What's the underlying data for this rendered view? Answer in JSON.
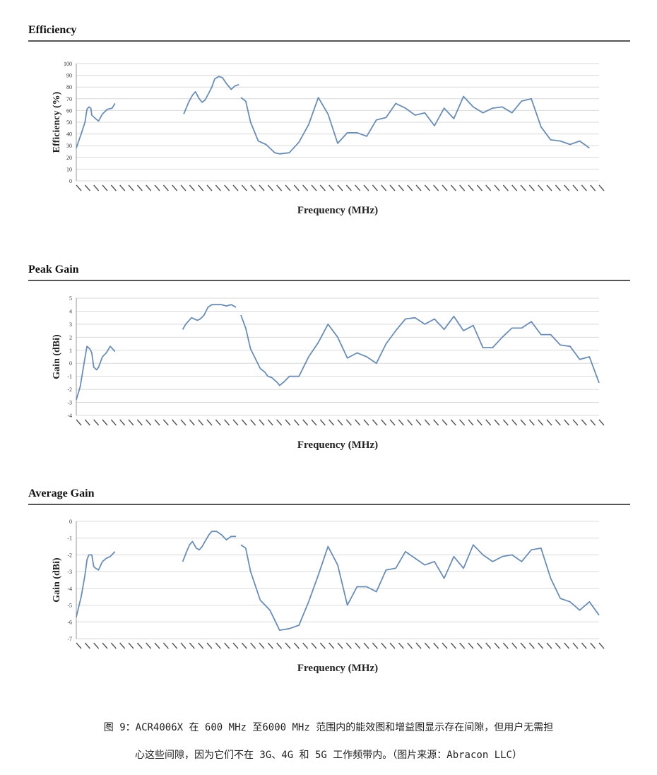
{
  "sections": [
    {
      "title": "Efficiency"
    },
    {
      "title": "Peak Gain"
    },
    {
      "title": "Average Gain"
    }
  ],
  "caption": {
    "line1": "图 9：ACR4006X 在 600 MHz 至6000 MHz 范围内的能效图和增益图显示存在间隙，但用户无需担",
    "line2": "心这些间隙，因为它们不在 3G、4G 和 5G 工作频带内。（图片来源：Abracon LLC）"
  },
  "colors": {
    "line": "#6b8db3",
    "grid": "#d9d9d9",
    "rule": "#555555"
  },
  "chart_data": [
    {
      "type": "line",
      "title": "Efficiency",
      "xlabel": "Frequency (MHz)",
      "ylabel": "Efficiency (%)",
      "ylim": [
        0,
        100
      ],
      "yticks": [
        0,
        10,
        20,
        30,
        40,
        50,
        60,
        70,
        80,
        90,
        100
      ],
      "xlim": [
        600,
        6000
      ],
      "grid": true,
      "segments": [
        [
          [
            600,
            28
          ],
          [
            650,
            40
          ],
          [
            690,
            50
          ],
          [
            710,
            61
          ],
          [
            730,
            63
          ],
          [
            750,
            62
          ],
          [
            760,
            56
          ],
          [
            800,
            53
          ],
          [
            830,
            51
          ],
          [
            870,
            57
          ],
          [
            920,
            61
          ],
          [
            970,
            62
          ],
          [
            1000,
            66
          ]
        ],
        [
          [
            1710,
            57
          ],
          [
            1760,
            67
          ],
          [
            1800,
            73
          ],
          [
            1830,
            76
          ],
          [
            1870,
            70
          ],
          [
            1900,
            67
          ],
          [
            1930,
            69
          ],
          [
            1970,
            75
          ],
          [
            2000,
            80
          ],
          [
            2030,
            87
          ],
          [
            2070,
            89
          ],
          [
            2110,
            88
          ],
          [
            2150,
            83
          ],
          [
            2200,
            78
          ],
          [
            2240,
            81
          ],
          [
            2280,
            82
          ]
        ],
        [
          [
            2300,
            71
          ],
          [
            2350,
            68
          ],
          [
            2400,
            50
          ],
          [
            2480,
            34
          ],
          [
            2560,
            31
          ],
          [
            2650,
            24
          ],
          [
            2700,
            23
          ],
          [
            2800,
            24
          ],
          [
            2900,
            33
          ],
          [
            3000,
            48
          ],
          [
            3100,
            71
          ],
          [
            3200,
            57
          ],
          [
            3300,
            32
          ],
          [
            3400,
            41
          ],
          [
            3500,
            41
          ],
          [
            3600,
            38
          ],
          [
            3700,
            52
          ],
          [
            3800,
            54
          ],
          [
            3900,
            66
          ],
          [
            4000,
            62
          ],
          [
            4100,
            56
          ],
          [
            4200,
            58
          ],
          [
            4300,
            47
          ],
          [
            4400,
            62
          ],
          [
            4500,
            53
          ],
          [
            4600,
            72
          ],
          [
            4700,
            63
          ],
          [
            4800,
            58
          ],
          [
            4900,
            62
          ],
          [
            5000,
            63
          ],
          [
            5100,
            58
          ],
          [
            5200,
            68
          ],
          [
            5300,
            70
          ],
          [
            5400,
            46
          ],
          [
            5500,
            35
          ],
          [
            5600,
            34
          ],
          [
            5700,
            31
          ],
          [
            5800,
            34
          ],
          [
            5900,
            28
          ]
        ]
      ]
    },
    {
      "type": "line",
      "title": "Peak Gain",
      "xlabel": "Frequency (MHz)",
      "ylabel": "Gain (dBi)",
      "ylim": [
        -4,
        5
      ],
      "yticks": [
        -4,
        -3,
        -2,
        -1,
        0,
        1,
        2,
        3,
        4,
        5
      ],
      "xlim": [
        600,
        6000
      ],
      "grid": true,
      "segments": [
        [
          [
            600,
            -2.8
          ],
          [
            640,
            -1.8
          ],
          [
            680,
            0
          ],
          [
            710,
            1.3
          ],
          [
            740,
            1.1
          ],
          [
            760,
            0.8
          ],
          [
            780,
            -0.3
          ],
          [
            810,
            -0.5
          ],
          [
            830,
            -0.3
          ],
          [
            870,
            0.5
          ],
          [
            910,
            0.8
          ],
          [
            950,
            1.3
          ],
          [
            1000,
            0.9
          ]
        ],
        [
          [
            1700,
            2.6
          ],
          [
            1730,
            3.0
          ],
          [
            1790,
            3.5
          ],
          [
            1820,
            3.4
          ],
          [
            1850,
            3.3
          ],
          [
            1880,
            3.4
          ],
          [
            1920,
            3.7
          ],
          [
            1960,
            4.3
          ],
          [
            2000,
            4.5
          ],
          [
            2100,
            4.5
          ],
          [
            2150,
            4.4
          ],
          [
            2200,
            4.5
          ],
          [
            2250,
            4.3
          ]
        ],
        [
          [
            2300,
            3.7
          ],
          [
            2350,
            2.7
          ],
          [
            2400,
            1.1
          ],
          [
            2500,
            -0.4
          ],
          [
            2550,
            -0.7
          ],
          [
            2580,
            -1.0
          ],
          [
            2620,
            -1.1
          ],
          [
            2650,
            -1.3
          ],
          [
            2680,
            -1.5
          ],
          [
            2700,
            -1.7
          ],
          [
            2750,
            -1.4
          ],
          [
            2800,
            -1.0
          ],
          [
            2900,
            -1.0
          ],
          [
            3000,
            0.5
          ],
          [
            3100,
            1.6
          ],
          [
            3200,
            3.0
          ],
          [
            3300,
            2.0
          ],
          [
            3400,
            0.4
          ],
          [
            3500,
            0.8
          ],
          [
            3600,
            0.5
          ],
          [
            3700,
            0.0
          ],
          [
            3800,
            1.5
          ],
          [
            3900,
            2.5
          ],
          [
            4000,
            3.4
          ],
          [
            4100,
            3.5
          ],
          [
            4200,
            3.0
          ],
          [
            4300,
            3.4
          ],
          [
            4400,
            2.6
          ],
          [
            4500,
            3.6
          ],
          [
            4600,
            2.5
          ],
          [
            4700,
            2.9
          ],
          [
            4800,
            1.2
          ],
          [
            4900,
            1.2
          ],
          [
            5000,
            2.0
          ],
          [
            5100,
            2.7
          ],
          [
            5200,
            2.7
          ],
          [
            5300,
            3.2
          ],
          [
            5400,
            2.2
          ],
          [
            5500,
            2.2
          ],
          [
            5600,
            1.4
          ],
          [
            5700,
            1.3
          ],
          [
            5800,
            0.3
          ],
          [
            5900,
            0.5
          ],
          [
            6000,
            -1.5
          ]
        ]
      ]
    },
    {
      "type": "line",
      "title": "Average Gain",
      "xlabel": "Frequency (MHz)",
      "ylabel": "Gain (dBi)",
      "ylim": [
        -7,
        0
      ],
      "yticks": [
        -7,
        -6,
        -5,
        -4,
        -3,
        -2,
        -1,
        0
      ],
      "xlim": [
        600,
        6000
      ],
      "grid": true,
      "segments": [
        [
          [
            600,
            -5.7
          ],
          [
            650,
            -4.5
          ],
          [
            690,
            -3.2
          ],
          [
            710,
            -2.3
          ],
          [
            730,
            -2.0
          ],
          [
            760,
            -2.0
          ],
          [
            780,
            -2.7
          ],
          [
            800,
            -2.8
          ],
          [
            830,
            -2.9
          ],
          [
            870,
            -2.4
          ],
          [
            910,
            -2.2
          ],
          [
            950,
            -2.1
          ],
          [
            1000,
            -1.8
          ]
        ],
        [
          [
            1700,
            -2.4
          ],
          [
            1740,
            -1.8
          ],
          [
            1770,
            -1.4
          ],
          [
            1800,
            -1.2
          ],
          [
            1840,
            -1.6
          ],
          [
            1870,
            -1.7
          ],
          [
            1900,
            -1.5
          ],
          [
            1940,
            -1.1
          ],
          [
            1970,
            -0.8
          ],
          [
            2000,
            -0.6
          ],
          [
            2050,
            -0.6
          ],
          [
            2100,
            -0.8
          ],
          [
            2150,
            -1.1
          ],
          [
            2200,
            -0.9
          ],
          [
            2250,
            -0.9
          ]
        ],
        [
          [
            2300,
            -1.4
          ],
          [
            2350,
            -1.6
          ],
          [
            2400,
            -3.0
          ],
          [
            2500,
            -4.7
          ],
          [
            2600,
            -5.3
          ],
          [
            2700,
            -6.5
          ],
          [
            2800,
            -6.4
          ],
          [
            2900,
            -6.2
          ],
          [
            3000,
            -4.8
          ],
          [
            3100,
            -3.2
          ],
          [
            3200,
            -1.5
          ],
          [
            3300,
            -2.6
          ],
          [
            3400,
            -5.0
          ],
          [
            3500,
            -3.9
          ],
          [
            3600,
            -3.9
          ],
          [
            3700,
            -4.2
          ],
          [
            3800,
            -2.9
          ],
          [
            3900,
            -2.8
          ],
          [
            4000,
            -1.8
          ],
          [
            4100,
            -2.2
          ],
          [
            4200,
            -2.6
          ],
          [
            4300,
            -2.4
          ],
          [
            4400,
            -3.4
          ],
          [
            4500,
            -2.1
          ],
          [
            4600,
            -2.8
          ],
          [
            4700,
            -1.4
          ],
          [
            4800,
            -2.0
          ],
          [
            4900,
            -2.4
          ],
          [
            5000,
            -2.1
          ],
          [
            5100,
            -2.0
          ],
          [
            5200,
            -2.4
          ],
          [
            5300,
            -1.7
          ],
          [
            5400,
            -1.6
          ],
          [
            5500,
            -3.4
          ],
          [
            5600,
            -4.6
          ],
          [
            5700,
            -4.8
          ],
          [
            5800,
            -5.3
          ],
          [
            5900,
            -4.8
          ],
          [
            6000,
            -5.6
          ]
        ]
      ]
    }
  ]
}
